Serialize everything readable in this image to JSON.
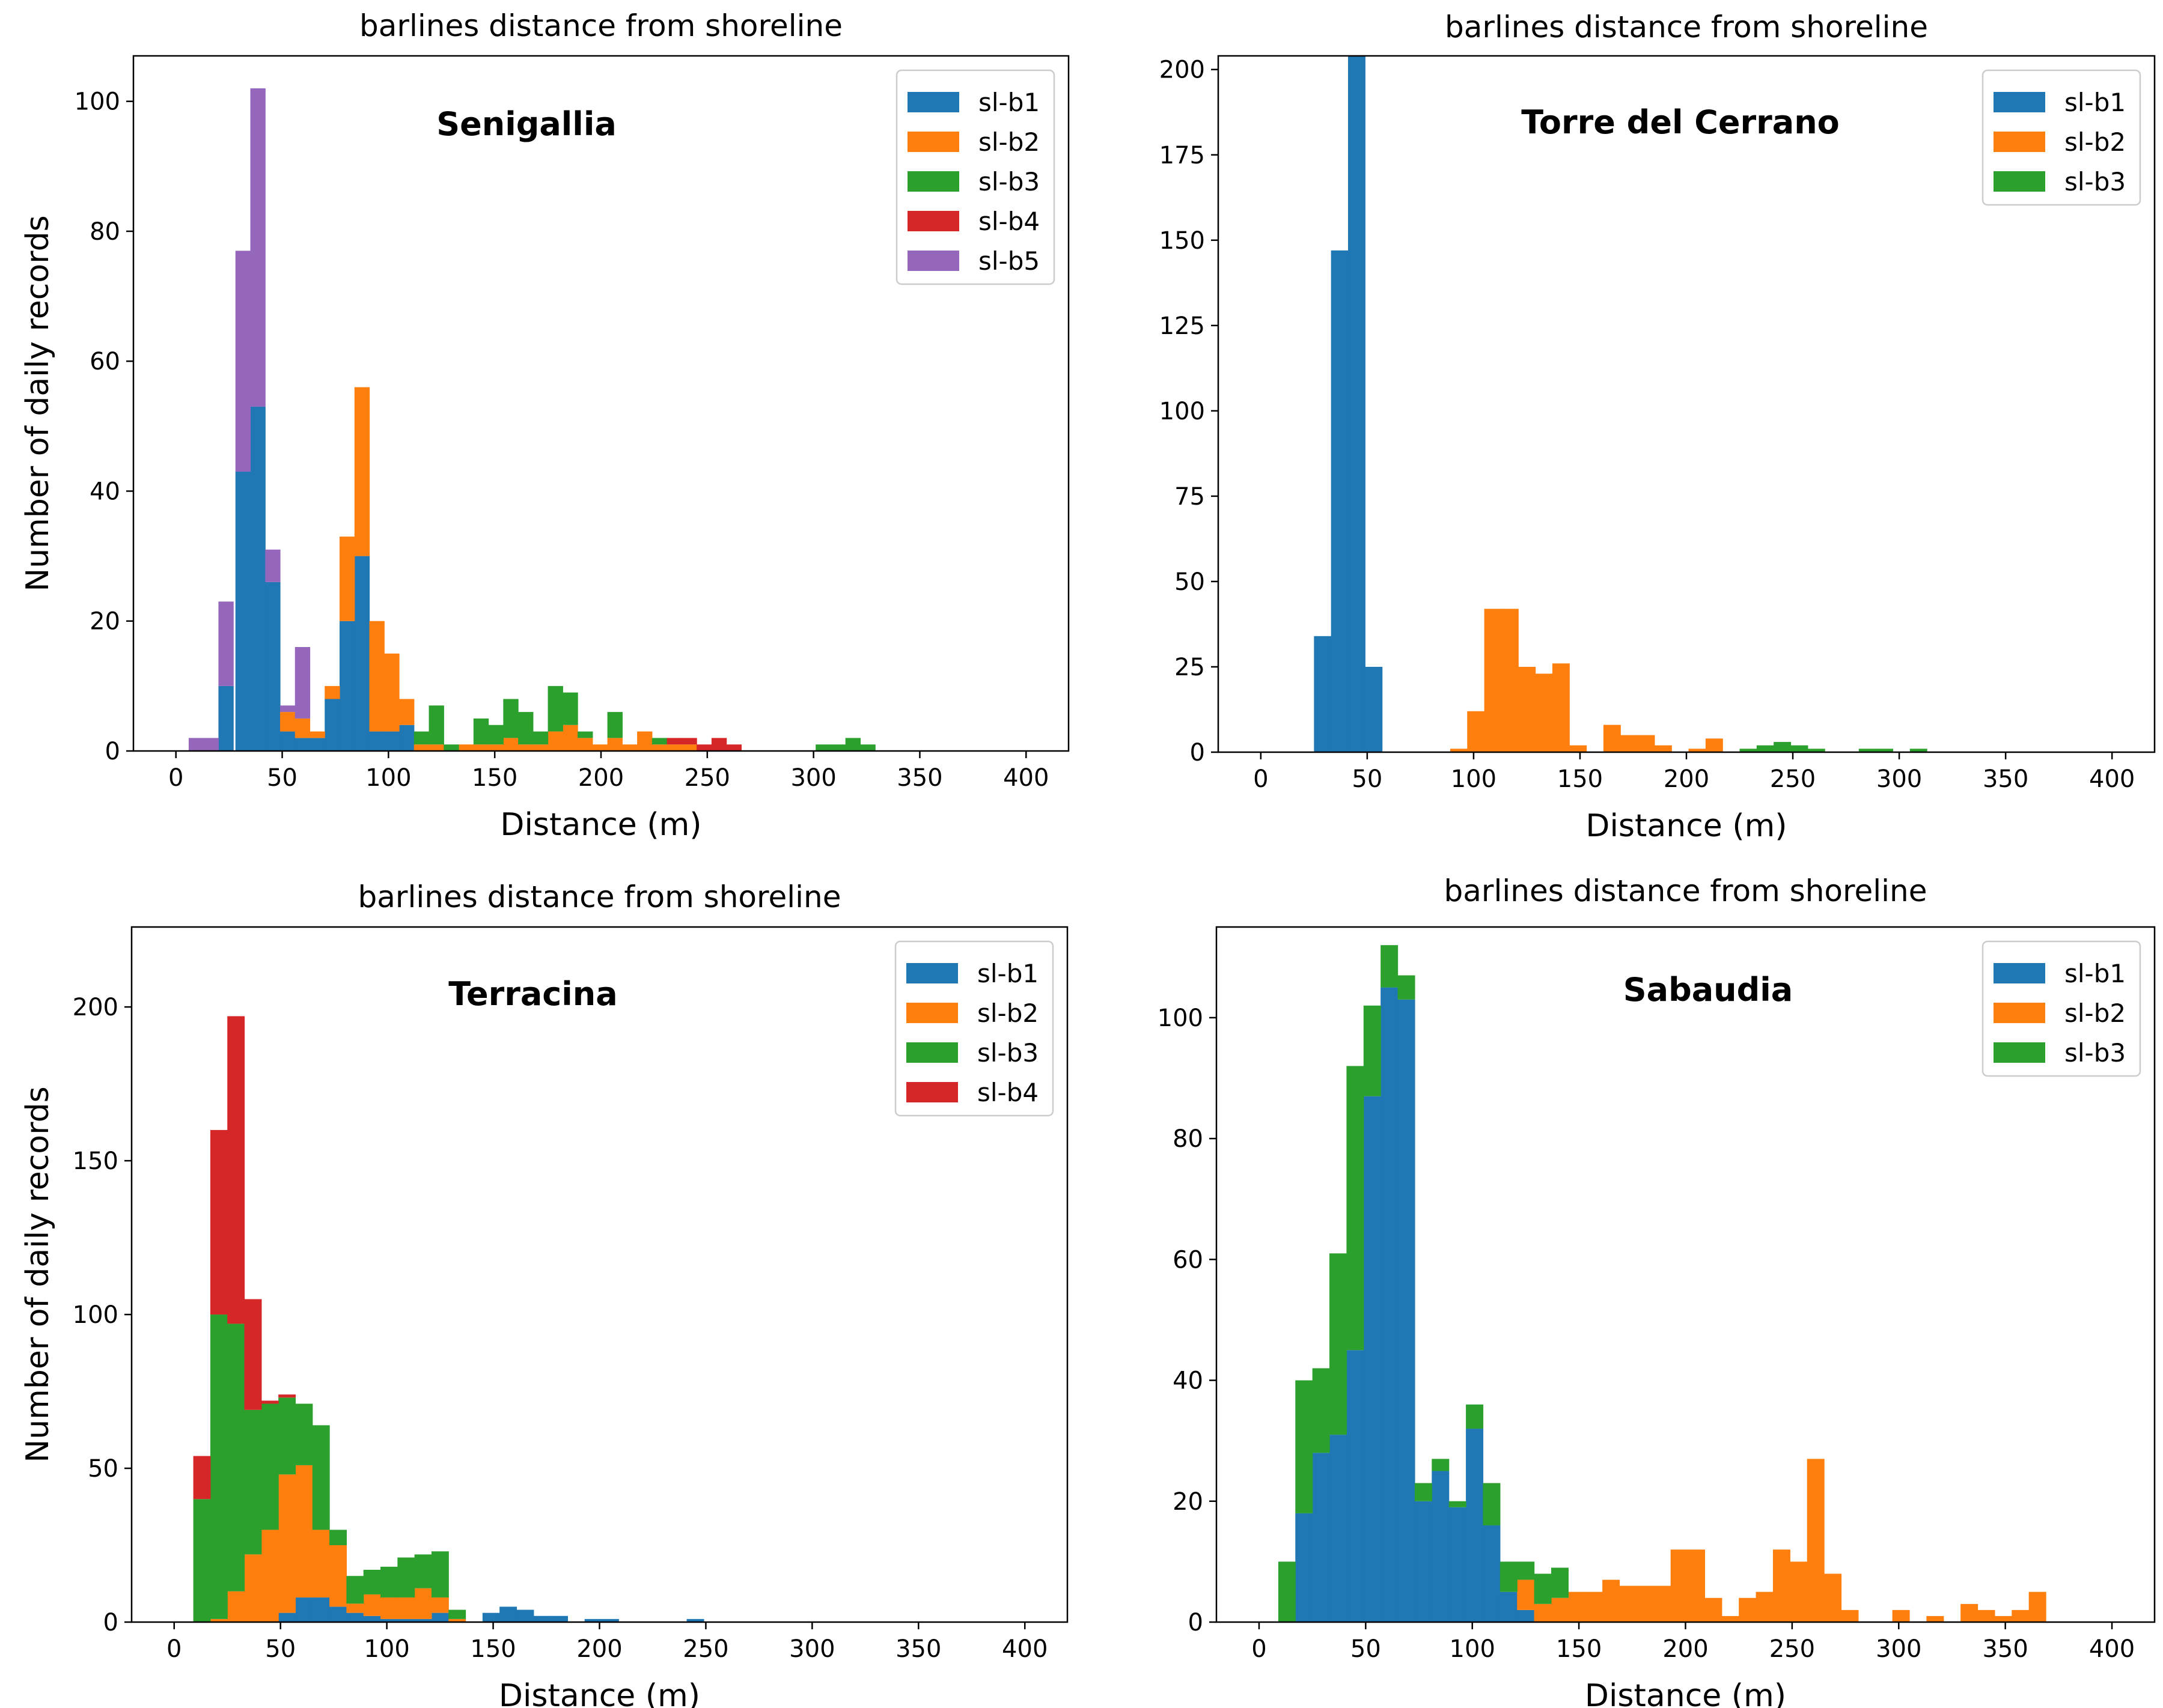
{
  "colors": {
    "sl-b1": "#1f77b4",
    "sl-b2": "#ff7f0e",
    "sl-b3": "#2ca02c",
    "sl-b4": "#d62728",
    "sl-b5": "#9467bd"
  },
  "chart_data": [
    {
      "type": "bar",
      "stacked": true,
      "title": "barlines distance from shoreline",
      "annotation": "Senigallia",
      "xlabel": "Distance (m)",
      "ylabel": "Number of daily records",
      "xlim": [
        -20,
        420
      ],
      "ylim": [
        0,
        107
      ],
      "xticks": [
        0,
        50,
        100,
        150,
        200,
        250,
        300,
        350,
        400
      ],
      "yticks": [
        0,
        20,
        40,
        60,
        80,
        100
      ],
      "legend_position": "top-right",
      "series": [
        {
          "name": "sl-b1",
          "bins": [
            [
              20,
              10
            ],
            [
              28,
              43
            ],
            [
              35,
              53
            ],
            [
              42,
              26
            ],
            [
              49,
              3
            ],
            [
              56,
              2
            ],
            [
              63,
              2
            ],
            [
              70,
              8
            ],
            [
              77,
              20
            ],
            [
              84,
              30
            ],
            [
              91,
              3
            ],
            [
              98,
              3
            ],
            [
              105,
              4
            ]
          ]
        },
        {
          "name": "sl-b2",
          "bins": [
            [
              49,
              3
            ],
            [
              56,
              3
            ],
            [
              63,
              1
            ],
            [
              70,
              2
            ],
            [
              77,
              13
            ],
            [
              84,
              26
            ],
            [
              91,
              17
            ],
            [
              98,
              12
            ],
            [
              105,
              4
            ],
            [
              112,
              1
            ],
            [
              119,
              1
            ],
            [
              133,
              1
            ],
            [
              140,
              1
            ],
            [
              147,
              1
            ],
            [
              154,
              2
            ],
            [
              161,
              1
            ],
            [
              168,
              1
            ],
            [
              175,
              3
            ],
            [
              182,
              4
            ],
            [
              189,
              2
            ],
            [
              196,
              1
            ],
            [
              203,
              2
            ],
            [
              210,
              1
            ],
            [
              217,
              3
            ],
            [
              224,
              1
            ],
            [
              231,
              1
            ],
            [
              238,
              1
            ]
          ]
        },
        {
          "name": "sl-b3",
          "bins": [
            [
              112,
              2
            ],
            [
              119,
              6
            ],
            [
              126,
              1
            ],
            [
              140,
              4
            ],
            [
              147,
              3
            ],
            [
              154,
              6
            ],
            [
              161,
              5
            ],
            [
              168,
              2
            ],
            [
              175,
              7
            ],
            [
              182,
              5
            ],
            [
              189,
              1
            ],
            [
              203,
              4
            ],
            [
              224,
              1
            ],
            [
              301,
              1
            ],
            [
              308,
              1
            ],
            [
              315,
              2
            ],
            [
              322,
              1
            ]
          ]
        },
        {
          "name": "sl-b4",
          "bins": [
            [
              231,
              1
            ],
            [
              238,
              1
            ],
            [
              245,
              1
            ],
            [
              252,
              2
            ],
            [
              259,
              1
            ]
          ]
        },
        {
          "name": "sl-b5",
          "bins": [
            [
              6,
              2
            ],
            [
              13,
              2
            ],
            [
              20,
              13
            ],
            [
              28,
              34
            ],
            [
              35,
              49
            ],
            [
              42,
              5
            ],
            [
              49,
              1
            ],
            [
              56,
              11
            ]
          ]
        }
      ]
    },
    {
      "type": "bar",
      "stacked": true,
      "title": "barlines distance from shoreline",
      "annotation": "Torre del Cerrano",
      "xlabel": "Distance (m)",
      "ylabel": "",
      "xlim": [
        -20,
        420
      ],
      "ylim": [
        0,
        204
      ],
      "xticks": [
        0,
        50,
        100,
        150,
        200,
        250,
        300,
        350,
        400
      ],
      "yticks": [
        0,
        25,
        50,
        75,
        100,
        125,
        150,
        175,
        200
      ],
      "legend_position": "top-right",
      "series": [
        {
          "name": "sl-b1",
          "bins": [
            [
              25,
              34
            ],
            [
              33,
              147
            ],
            [
              41,
              204
            ],
            [
              49,
              25
            ]
          ]
        },
        {
          "name": "sl-b2",
          "bins": [
            [
              89,
              1
            ],
            [
              97,
              12
            ],
            [
              105,
              42
            ],
            [
              113,
              42
            ],
            [
              121,
              25
            ],
            [
              129,
              23
            ],
            [
              137,
              26
            ],
            [
              145,
              2
            ],
            [
              161,
              8
            ],
            [
              169,
              5
            ],
            [
              177,
              5
            ],
            [
              185,
              2
            ],
            [
              201,
              1
            ],
            [
              209,
              4
            ]
          ]
        },
        {
          "name": "sl-b3",
          "bins": [
            [
              225,
              1
            ],
            [
              233,
              2
            ],
            [
              241,
              3
            ],
            [
              249,
              2
            ],
            [
              257,
              1
            ],
            [
              281,
              1
            ],
            [
              289,
              1
            ],
            [
              305,
              1
            ]
          ]
        }
      ]
    },
    {
      "type": "bar",
      "stacked": true,
      "title": "barlines distance from shoreline",
      "annotation": "Terracina",
      "xlabel": "Distance (m)",
      "ylabel": "Number of daily records",
      "xlim": [
        -20,
        420
      ],
      "ylim": [
        0,
        226
      ],
      "xticks": [
        0,
        50,
        100,
        150,
        200,
        250,
        300,
        350,
        400
      ],
      "yticks": [
        0,
        50,
        100,
        150,
        200
      ],
      "legend_position": "top-right",
      "series": [
        {
          "name": "sl-b1",
          "bins": [
            [
              49,
              3
            ],
            [
              57,
              8
            ],
            [
              65,
              8
            ],
            [
              73,
              5
            ],
            [
              81,
              3
            ],
            [
              89,
              2
            ],
            [
              97,
              1
            ],
            [
              105,
              1
            ],
            [
              113,
              1
            ],
            [
              121,
              3
            ],
            [
              145,
              3
            ],
            [
              153,
              5
            ],
            [
              161,
              4
            ],
            [
              169,
              2
            ],
            [
              177,
              2
            ],
            [
              193,
              1
            ],
            [
              201,
              1
            ],
            [
              241,
              1
            ]
          ]
        },
        {
          "name": "sl-b2",
          "bins": [
            [
              17,
              1
            ],
            [
              25,
              10
            ],
            [
              33,
              22
            ],
            [
              41,
              30
            ],
            [
              49,
              45
            ],
            [
              57,
              43
            ],
            [
              65,
              22
            ],
            [
              73,
              20
            ],
            [
              81,
              3
            ],
            [
              89,
              7
            ],
            [
              97,
              7
            ],
            [
              105,
              7
            ],
            [
              113,
              10
            ],
            [
              121,
              5
            ],
            [
              129,
              1
            ]
          ]
        },
        {
          "name": "sl-b3",
          "bins": [
            [
              9,
              40
            ],
            [
              17,
              99
            ],
            [
              25,
              87
            ],
            [
              33,
              47
            ],
            [
              41,
              41
            ],
            [
              49,
              25
            ],
            [
              57,
              20
            ],
            [
              65,
              34
            ],
            [
              73,
              5
            ],
            [
              81,
              9
            ],
            [
              89,
              8
            ],
            [
              97,
              10
            ],
            [
              105,
              13
            ],
            [
              113,
              11
            ],
            [
              121,
              15
            ],
            [
              129,
              3
            ]
          ]
        },
        {
          "name": "sl-b4",
          "bins": [
            [
              9,
              14
            ],
            [
              17,
              60
            ],
            [
              25,
              100
            ],
            [
              33,
              36
            ],
            [
              41,
              1
            ],
            [
              49,
              1
            ]
          ]
        }
      ]
    },
    {
      "type": "bar",
      "stacked": true,
      "title": "barlines distance from shoreline",
      "annotation": "Sabaudia",
      "xlabel": "Distance (m)",
      "ylabel": "",
      "xlim": [
        -20,
        420
      ],
      "ylim": [
        0,
        115
      ],
      "xticks": [
        0,
        50,
        100,
        150,
        200,
        250,
        300,
        350,
        400
      ],
      "yticks": [
        0,
        20,
        40,
        60,
        80,
        100
      ],
      "legend_position": "top-right",
      "series": [
        {
          "name": "sl-b1",
          "bins": [
            [
              17,
              18
            ],
            [
              25,
              28
            ],
            [
              33,
              31
            ],
            [
              41,
              45
            ],
            [
              49,
              87
            ],
            [
              57,
              105
            ],
            [
              65,
              103
            ],
            [
              73,
              20
            ],
            [
              81,
              25
            ],
            [
              89,
              19
            ],
            [
              97,
              32
            ],
            [
              105,
              16
            ],
            [
              113,
              5
            ],
            [
              121,
              2
            ]
          ]
        },
        {
          "name": "sl-b2",
          "bins": [
            [
              121,
              5
            ],
            [
              129,
              3
            ],
            [
              137,
              4
            ],
            [
              145,
              5
            ],
            [
              153,
              5
            ],
            [
              161,
              7
            ],
            [
              169,
              6
            ],
            [
              177,
              6
            ],
            [
              185,
              6
            ],
            [
              193,
              12
            ],
            [
              201,
              12
            ],
            [
              209,
              4
            ],
            [
              217,
              1
            ],
            [
              225,
              4
            ],
            [
              233,
              5
            ],
            [
              241,
              12
            ],
            [
              249,
              10
            ],
            [
              257,
              27
            ],
            [
              265,
              8
            ],
            [
              273,
              2
            ],
            [
              297,
              2
            ],
            [
              313,
              1
            ],
            [
              329,
              3
            ],
            [
              337,
              2
            ],
            [
              345,
              1
            ],
            [
              353,
              2
            ],
            [
              361,
              5
            ]
          ]
        },
        {
          "name": "sl-b3",
          "bins": [
            [
              9,
              10
            ],
            [
              17,
              22
            ],
            [
              25,
              14
            ],
            [
              33,
              30
            ],
            [
              41,
              47
            ],
            [
              49,
              15
            ],
            [
              57,
              7
            ],
            [
              65,
              4
            ],
            [
              73,
              3
            ],
            [
              81,
              2
            ],
            [
              89,
              1
            ],
            [
              97,
              4
            ],
            [
              105,
              7
            ],
            [
              113,
              5
            ],
            [
              121,
              3
            ],
            [
              129,
              5
            ],
            [
              137,
              5
            ]
          ]
        }
      ]
    }
  ]
}
